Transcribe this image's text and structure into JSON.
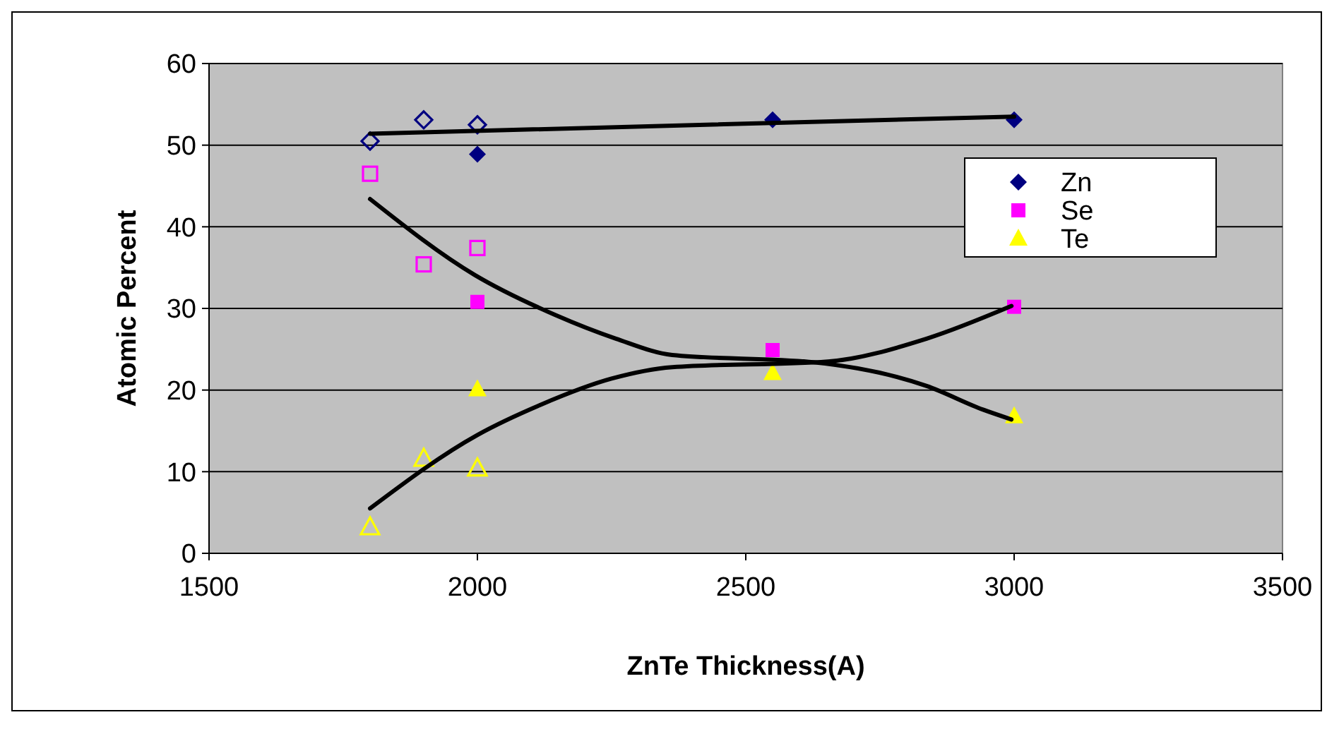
{
  "chart_data": {
    "type": "scatter",
    "xlabel": "ZnTe Thickness(A)",
    "ylabel": "Atomic Percent",
    "xlim": [
      1500,
      3500
    ],
    "xticks": [
      1500,
      2000,
      2500,
      3000,
      3500
    ],
    "ylim": [
      0,
      60
    ],
    "yticks": [
      0,
      10,
      20,
      30,
      40,
      50,
      60
    ],
    "grid": "y",
    "legend": "right",
    "series": [
      {
        "name": "Zn",
        "color": "#000080",
        "marker": "diamond",
        "x": [
          2000,
          2550,
          3000
        ],
        "values": [
          48.9,
          53.1,
          53.1
        ]
      },
      {
        "name": "Se",
        "color": "#ff00ff",
        "marker": "square",
        "x": [
          2000,
          2550,
          3000
        ],
        "values": [
          30.8,
          24.9,
          30.2
        ]
      },
      {
        "name": "Te",
        "color": "#ffff00",
        "marker": "triangle",
        "x": [
          2000,
          2550,
          3000
        ],
        "values": [
          20.1,
          22.1,
          16.8
        ]
      },
      {
        "color": "#000080",
        "marker": "diamond",
        "x": [
          1800,
          1900,
          2000
        ],
        "values": [
          50.5,
          53.1,
          52.5
        ]
      },
      {
        "color": "#ff00ff",
        "marker": "square",
        "x": [
          1800,
          1900,
          2000
        ],
        "values": [
          46.5,
          35.4,
          37.4
        ]
      },
      {
        "color": "#ffff00",
        "marker": "triangle",
        "x": [
          1800,
          1900,
          2000
        ],
        "values": [
          3.2,
          11.6,
          10.4
        ]
      },
      {
        "type": "line",
        "color": "#000000",
        "x": [
          1800,
          3000
        ],
        "values": [
          51.4,
          53.5
        ]
      },
      {
        "type": "line",
        "color": "#000000",
        "x": [
          1800,
          1995,
          2145,
          2258,
          2363,
          2626,
          2837,
          2942,
          2995
        ],
        "values": [
          43.4,
          34.1,
          29.2,
          26.3,
          24.3,
          23.4,
          20.5,
          17.6,
          16.4
        ]
      },
      {
        "type": "line",
        "color": "#000000",
        "x": [
          1800,
          2000,
          2118,
          2250,
          2363,
          2653,
          2837,
          2995
        ],
        "values": [
          5.5,
          14.5,
          18.2,
          21.4,
          22.8,
          23.5,
          26.3,
          30.3
        ]
      }
    ]
  }
}
